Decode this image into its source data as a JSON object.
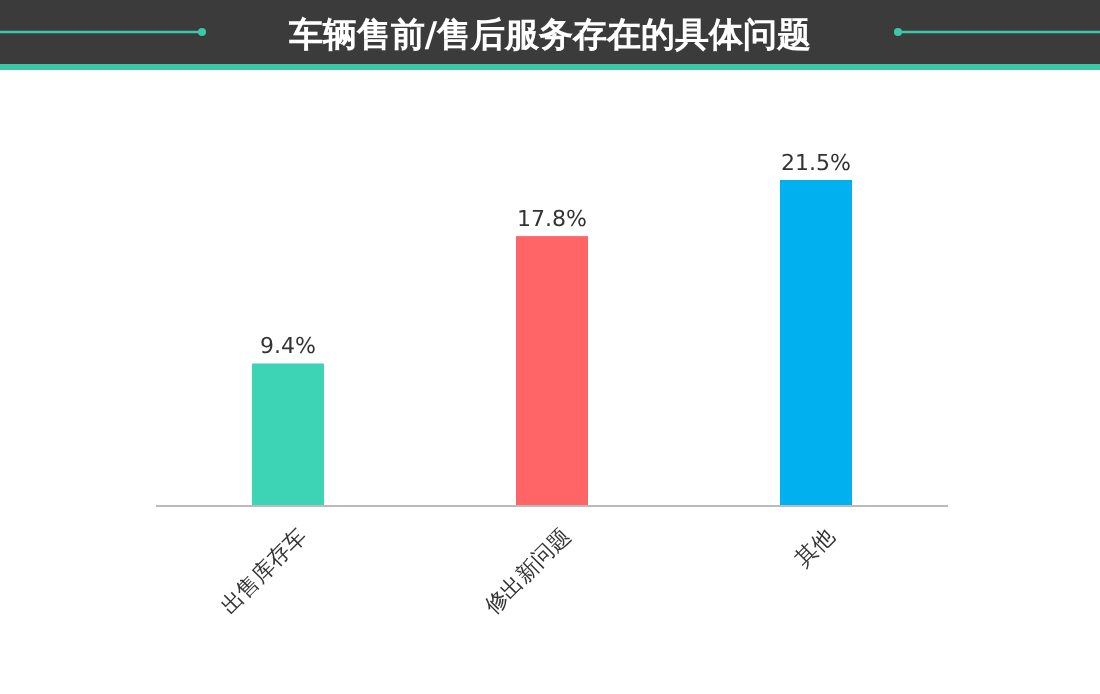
{
  "chart_data": {
    "type": "bar",
    "title": "车辆售前/售后服务存在的具体问题",
    "categories": [
      "出售库存车",
      "修出新问题",
      "其他"
    ],
    "values": [
      9.4,
      17.8,
      21.5
    ],
    "colors": [
      "#3dd4b6",
      "#ff6466",
      "#00b0ef"
    ],
    "data_labels": true,
    "value_labels": [
      "9.4%",
      "17.8%",
      "21.5%"
    ]
  }
}
